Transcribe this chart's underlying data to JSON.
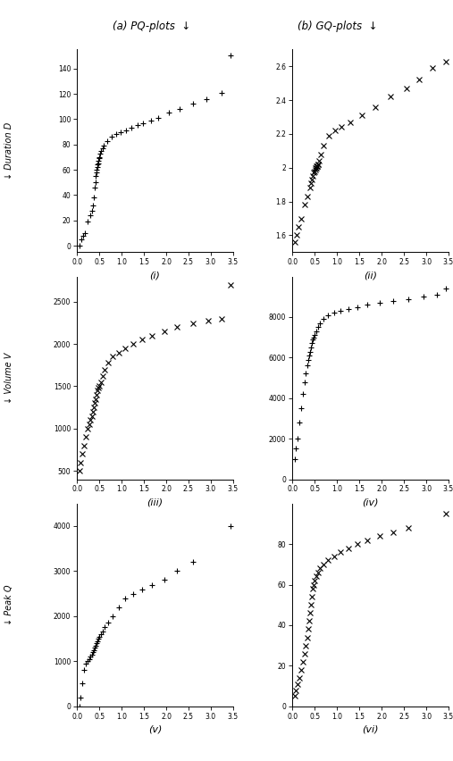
{
  "title_left": "(a) PQ-plots  ↓",
  "title_right": "(b) GQ-plots  ↓",
  "row_ylabels": [
    "↓ Duration D",
    "↓ Volume V",
    "↓ Peak Q"
  ],
  "xlim": [
    0.0,
    3.5
  ],
  "plots": [
    {
      "id": "i",
      "marker": "+",
      "x": [
        0.05,
        0.09,
        0.13,
        0.18,
        0.24,
        0.29,
        0.33,
        0.36,
        0.38,
        0.4,
        0.41,
        0.42,
        0.43,
        0.44,
        0.45,
        0.46,
        0.47,
        0.48,
        0.49,
        0.5,
        0.52,
        0.54,
        0.57,
        0.6,
        0.68,
        0.77,
        0.88,
        0.98,
        1.1,
        1.22,
        1.35,
        1.48,
        1.65,
        1.82,
        2.05,
        2.3,
        2.6,
        2.9,
        3.25,
        3.45
      ],
      "y": [
        0,
        5,
        8,
        10,
        19,
        24,
        28,
        32,
        38,
        46,
        50,
        55,
        58,
        60,
        62,
        64,
        65,
        67,
        69,
        70,
        73,
        75,
        77,
        79,
        83,
        86,
        88,
        90,
        91,
        93,
        95,
        97,
        99,
        101,
        105,
        108,
        112,
        116,
        121,
        150
      ],
      "ylim": [
        -5,
        155
      ],
      "yticks": [
        0,
        20,
        40,
        60,
        80,
        100,
        120,
        140
      ],
      "xticks": [
        0.0,
        0.5,
        1.0,
        1.5,
        2.0,
        2.5,
        3.0,
        3.5
      ],
      "xlabels": [
        "0.0",
        "0.5",
        "1.0",
        "1.5",
        "2.0",
        "2.5",
        "3.0",
        "3.5"
      ]
    },
    {
      "id": "ii",
      "marker": "x",
      "x": [
        0.05,
        0.09,
        0.14,
        0.19,
        0.27,
        0.34,
        0.39,
        0.42,
        0.44,
        0.46,
        0.48,
        0.5,
        0.51,
        0.52,
        0.53,
        0.54,
        0.55,
        0.56,
        0.57,
        0.58,
        0.6,
        0.63,
        0.7,
        0.82,
        0.95,
        1.1,
        1.3,
        1.55,
        1.85,
        2.2,
        2.55,
        2.85,
        3.15,
        3.45
      ],
      "y": [
        1.56,
        1.6,
        1.65,
        1.7,
        1.78,
        1.83,
        1.88,
        1.91,
        1.93,
        1.95,
        1.97,
        1.98,
        1.99,
        2.0,
        2.0,
        2.01,
        2.01,
        2.01,
        2.02,
        2.02,
        2.04,
        2.08,
        2.13,
        2.19,
        2.22,
        2.24,
        2.27,
        2.31,
        2.36,
        2.42,
        2.47,
        2.52,
        2.59,
        2.63
      ],
      "ylim": [
        1.5,
        2.7
      ],
      "yticks": [
        1.6,
        1.8,
        2.0,
        2.2,
        2.4,
        2.6
      ],
      "xticks": [
        0.0,
        0.5,
        1.0,
        1.5,
        2.0,
        2.5,
        3.0,
        3.5
      ],
      "xlabels": [
        "0.0",
        "0.5",
        "1.0",
        "1.5",
        "2.0",
        "2.5",
        "3.0",
        "3.5"
      ]
    },
    {
      "id": "iii",
      "marker": "x",
      "x": [
        0.05,
        0.08,
        0.11,
        0.15,
        0.19,
        0.23,
        0.27,
        0.3,
        0.33,
        0.36,
        0.38,
        0.4,
        0.42,
        0.44,
        0.46,
        0.48,
        0.5,
        0.53,
        0.57,
        0.62,
        0.7,
        0.8,
        0.93,
        1.08,
        1.25,
        1.45,
        1.68,
        1.95,
        2.25,
        2.6,
        2.95,
        3.25,
        3.45
      ],
      "y": [
        500,
        600,
        700,
        800,
        900,
        1000,
        1050,
        1100,
        1150,
        1200,
        1250,
        1300,
        1350,
        1400,
        1450,
        1480,
        1500,
        1550,
        1620,
        1700,
        1780,
        1850,
        1900,
        1950,
        2000,
        2050,
        2100,
        2150,
        2200,
        2250,
        2280,
        2300,
        2700
      ],
      "ylim": [
        400,
        2800
      ],
      "yticks": [
        500,
        1000,
        1500,
        2000,
        2500
      ],
      "xticks": [
        0.0,
        0.5,
        1.0,
        1.5,
        2.0,
        2.5,
        3.0,
        3.5
      ],
      "xlabels": [
        "0.0",
        "0.5",
        "1.0",
        "1.5",
        "2.0",
        "2.5",
        "3.0",
        "3.5"
      ]
    },
    {
      "id": "iv",
      "marker": "+",
      "x": [
        0.05,
        0.08,
        0.11,
        0.15,
        0.19,
        0.23,
        0.27,
        0.3,
        0.33,
        0.36,
        0.38,
        0.4,
        0.42,
        0.44,
        0.46,
        0.48,
        0.5,
        0.53,
        0.57,
        0.62,
        0.7,
        0.8,
        0.93,
        1.08,
        1.25,
        1.45,
        1.68,
        1.95,
        2.25,
        2.6,
        2.95,
        3.25,
        3.45
      ],
      "y": [
        1000,
        1500,
        2000,
        2800,
        3500,
        4200,
        4800,
        5200,
        5600,
        5900,
        6100,
        6300,
        6500,
        6700,
        6900,
        7000,
        7100,
        7300,
        7500,
        7700,
        7900,
        8100,
        8200,
        8300,
        8400,
        8500,
        8600,
        8700,
        8800,
        8900,
        9000,
        9100,
        9400
      ],
      "ylim": [
        0,
        10000
      ],
      "yticks": [
        0,
        2000,
        4000,
        6000,
        8000
      ],
      "xticks": [
        0.0,
        0.5,
        1.0,
        1.5,
        2.0,
        2.5,
        3.0,
        3.5
      ],
      "xlabels": [
        "0.0",
        "0.5",
        "1.0",
        "1.5",
        "2.0",
        "2.5",
        "3.0",
        "3.5"
      ]
    },
    {
      "id": "v",
      "marker": "+",
      "x": [
        0.05,
        0.08,
        0.11,
        0.15,
        0.19,
        0.23,
        0.27,
        0.3,
        0.33,
        0.36,
        0.38,
        0.4,
        0.42,
        0.44,
        0.46,
        0.48,
        0.5,
        0.53,
        0.57,
        0.62,
        0.7,
        0.8,
        0.93,
        1.08,
        1.25,
        1.45,
        1.68,
        1.95,
        2.25,
        2.6,
        3.45
      ],
      "y": [
        0,
        200,
        500,
        800,
        950,
        1000,
        1050,
        1100,
        1150,
        1200,
        1250,
        1300,
        1350,
        1400,
        1450,
        1500,
        1550,
        1600,
        1650,
        1750,
        1850,
        2000,
        2200,
        2400,
        2500,
        2600,
        2700,
        2800,
        3000,
        3200,
        4000
      ],
      "ylim": [
        0,
        4500
      ],
      "yticks": [
        0,
        1000,
        2000,
        3000,
        4000
      ],
      "xticks": [
        0.0,
        0.5,
        1.0,
        1.5,
        2.0,
        2.5,
        3.0,
        3.5
      ],
      "xlabels": [
        "0.0",
        "0.5",
        "1.0",
        "1.5",
        "2.0",
        "2.5",
        "3.0",
        "3.5"
      ]
    },
    {
      "id": "vi",
      "marker": "x",
      "x": [
        0.05,
        0.08,
        0.11,
        0.15,
        0.19,
        0.23,
        0.27,
        0.3,
        0.33,
        0.36,
        0.38,
        0.4,
        0.42,
        0.44,
        0.46,
        0.48,
        0.5,
        0.53,
        0.57,
        0.62,
        0.7,
        0.8,
        0.93,
        1.08,
        1.25,
        1.45,
        1.68,
        1.95,
        2.25,
        2.6,
        3.45
      ],
      "y": [
        5,
        8,
        11,
        14,
        18,
        22,
        26,
        30,
        34,
        38,
        42,
        46,
        50,
        54,
        58,
        60,
        62,
        64,
        66,
        68,
        70,
        72,
        74,
        76,
        78,
        80,
        82,
        84,
        86,
        88,
        95
      ],
      "ylim": [
        0,
        100
      ],
      "yticks": [
        0,
        20,
        40,
        60,
        80
      ],
      "xticks": [
        0.0,
        0.5,
        1.0,
        1.5,
        2.0,
        2.5,
        3.0,
        3.5
      ],
      "xlabels": [
        "0.0",
        "0.5",
        "1.0",
        "1.5",
        "2.0",
        "2.5",
        "3.0",
        "3.5"
      ]
    }
  ]
}
